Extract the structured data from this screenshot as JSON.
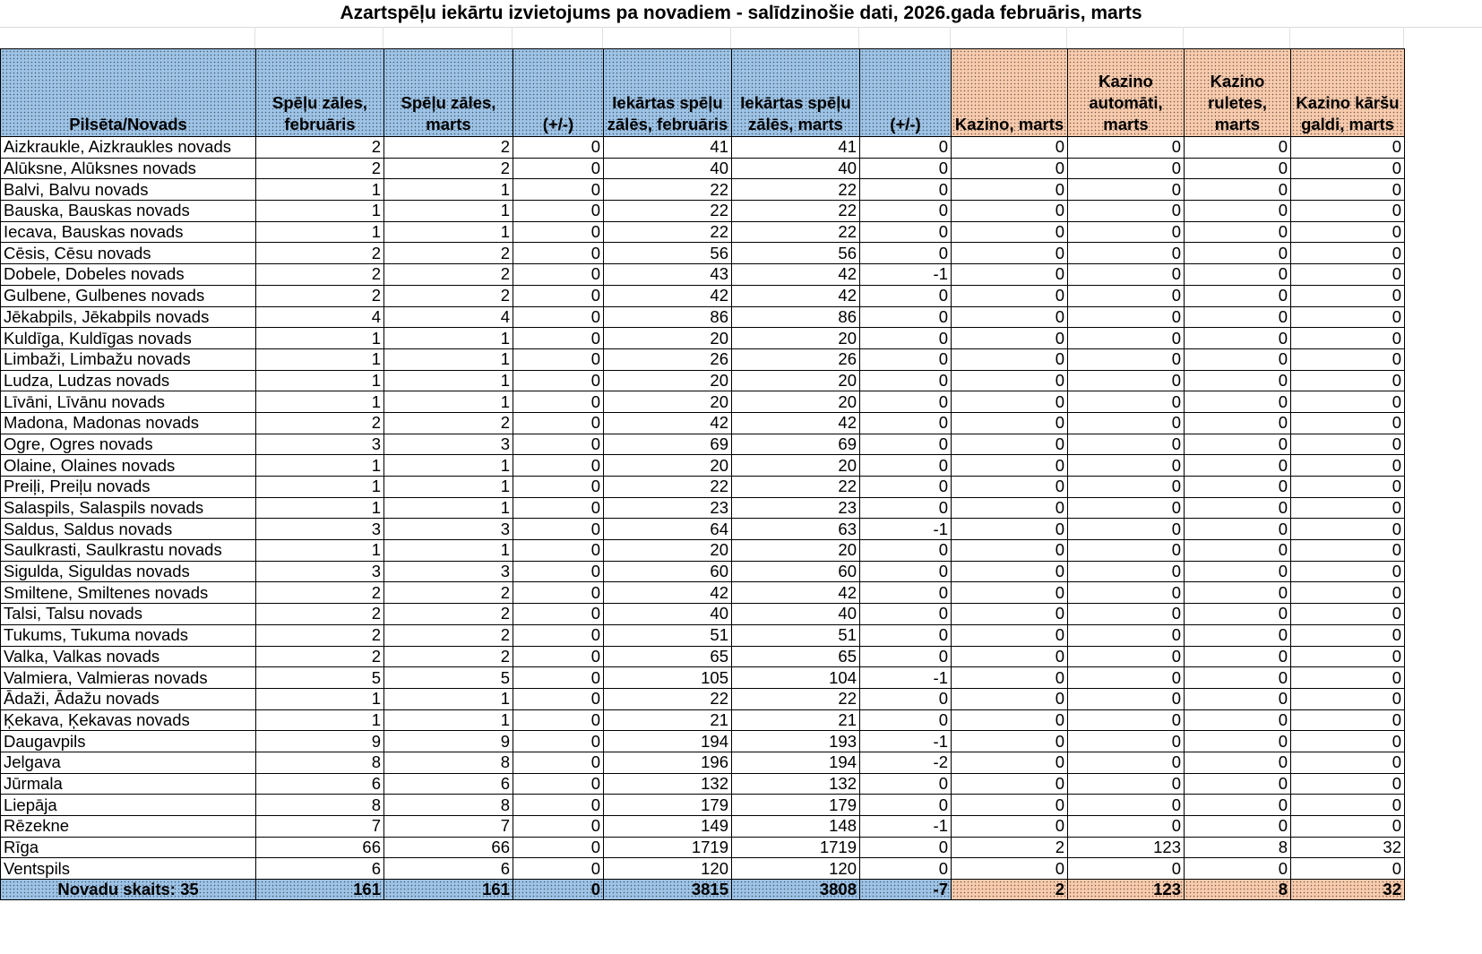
{
  "title": "Azartspēļu iekārtu izvietojums pa novadiem - salīdzinošie dati, 2026.gada februāris, marts",
  "colors": {
    "header_blue": "#9dc3e6",
    "header_orange": "#f8cbad"
  },
  "columns": [
    {
      "label": "Pilsēta/Novads",
      "group": "blue"
    },
    {
      "label": "Spēļu zāles, februāris",
      "group": "blue"
    },
    {
      "label": "Spēļu zāles, marts",
      "group": "blue"
    },
    {
      "label": "(+/-)",
      "group": "blue"
    },
    {
      "label": "Iekārtas spēļu zālēs, februāris",
      "group": "blue"
    },
    {
      "label": "Iekārtas spēļu zālēs, marts",
      "group": "blue"
    },
    {
      "label": "(+/-)",
      "group": "blue"
    },
    {
      "label": "Kazino, marts",
      "group": "orange"
    },
    {
      "label": "Kazino automāti, marts",
      "group": "orange"
    },
    {
      "label": "Kazino ruletes, marts",
      "group": "orange"
    },
    {
      "label": "Kazino kāršu galdi, marts",
      "group": "orange"
    }
  ],
  "rows": [
    [
      "Aizkraukle, Aizkraukles novads",
      "2",
      "2",
      "0",
      "41",
      "41",
      "0",
      "0",
      "0",
      "0",
      "0"
    ],
    [
      "Alūksne, Alūksnes novads",
      "2",
      "2",
      "0",
      "40",
      "40",
      "0",
      "0",
      "0",
      "0",
      "0"
    ],
    [
      "Balvi, Balvu novads",
      "1",
      "1",
      "0",
      "22",
      "22",
      "0",
      "0",
      "0",
      "0",
      "0"
    ],
    [
      "Bauska, Bauskas novads",
      "1",
      "1",
      "0",
      "22",
      "22",
      "0",
      "0",
      "0",
      "0",
      "0"
    ],
    [
      "Iecava, Bauskas novads",
      "1",
      "1",
      "0",
      "22",
      "22",
      "0",
      "0",
      "0",
      "0",
      "0"
    ],
    [
      "Cēsis, Cēsu novads",
      "2",
      "2",
      "0",
      "56",
      "56",
      "0",
      "0",
      "0",
      "0",
      "0"
    ],
    [
      "Dobele, Dobeles novads",
      "2",
      "2",
      "0",
      "43",
      "42",
      "-1",
      "0",
      "0",
      "0",
      "0"
    ],
    [
      "Gulbene, Gulbenes novads",
      "2",
      "2",
      "0",
      "42",
      "42",
      "0",
      "0",
      "0",
      "0",
      "0"
    ],
    [
      "Jēkabpils, Jēkabpils novads",
      "4",
      "4",
      "0",
      "86",
      "86",
      "0",
      "0",
      "0",
      "0",
      "0"
    ],
    [
      "Kuldīga, Kuldīgas novads",
      "1",
      "1",
      "0",
      "20",
      "20",
      "0",
      "0",
      "0",
      "0",
      "0"
    ],
    [
      "Limbaži, Limbažu novads",
      "1",
      "1",
      "0",
      "26",
      "26",
      "0",
      "0",
      "0",
      "0",
      "0"
    ],
    [
      "Ludza, Ludzas novads",
      "1",
      "1",
      "0",
      "20",
      "20",
      "0",
      "0",
      "0",
      "0",
      "0"
    ],
    [
      "Līvāni, Līvānu novads",
      "1",
      "1",
      "0",
      "20",
      "20",
      "0",
      "0",
      "0",
      "0",
      "0"
    ],
    [
      "Madona, Madonas novads",
      "2",
      "2",
      "0",
      "42",
      "42",
      "0",
      "0",
      "0",
      "0",
      "0"
    ],
    [
      "Ogre, Ogres novads",
      "3",
      "3",
      "0",
      "69",
      "69",
      "0",
      "0",
      "0",
      "0",
      "0"
    ],
    [
      "Olaine, Olaines novads",
      "1",
      "1",
      "0",
      "20",
      "20",
      "0",
      "0",
      "0",
      "0",
      "0"
    ],
    [
      "Preiļi, Preiļu novads",
      "1",
      "1",
      "0",
      "22",
      "22",
      "0",
      "0",
      "0",
      "0",
      "0"
    ],
    [
      "Salaspils, Salaspils novads",
      "1",
      "1",
      "0",
      "23",
      "23",
      "0",
      "0",
      "0",
      "0",
      "0"
    ],
    [
      "Saldus, Saldus novads",
      "3",
      "3",
      "0",
      "64",
      "63",
      "-1",
      "0",
      "0",
      "0",
      "0"
    ],
    [
      "Saulkrasti, Saulkrastu novads",
      "1",
      "1",
      "0",
      "20",
      "20",
      "0",
      "0",
      "0",
      "0",
      "0"
    ],
    [
      "Sigulda, Siguldas novads",
      "3",
      "3",
      "0",
      "60",
      "60",
      "0",
      "0",
      "0",
      "0",
      "0"
    ],
    [
      "Smiltene, Smiltenes novads",
      "2",
      "2",
      "0",
      "42",
      "42",
      "0",
      "0",
      "0",
      "0",
      "0"
    ],
    [
      "Talsi, Talsu novads",
      "2",
      "2",
      "0",
      "40",
      "40",
      "0",
      "0",
      "0",
      "0",
      "0"
    ],
    [
      "Tukums, Tukuma novads",
      "2",
      "2",
      "0",
      "51",
      "51",
      "0",
      "0",
      "0",
      "0",
      "0"
    ],
    [
      "Valka, Valkas novads",
      "2",
      "2",
      "0",
      "65",
      "65",
      "0",
      "0",
      "0",
      "0",
      "0"
    ],
    [
      "Valmiera, Valmieras novads",
      "5",
      "5",
      "0",
      "105",
      "104",
      "-1",
      "0",
      "0",
      "0",
      "0"
    ],
    [
      "Ādaži, Ādažu novads",
      "1",
      "1",
      "0",
      "22",
      "22",
      "0",
      "0",
      "0",
      "0",
      "0"
    ],
    [
      "Ķekava, Ķekavas novads",
      "1",
      "1",
      "0",
      "21",
      "21",
      "0",
      "0",
      "0",
      "0",
      "0"
    ],
    [
      "Daugavpils",
      "9",
      "9",
      "0",
      "194",
      "193",
      "-1",
      "0",
      "0",
      "0",
      "0"
    ],
    [
      "Jelgava",
      "8",
      "8",
      "0",
      "196",
      "194",
      "-2",
      "0",
      "0",
      "0",
      "0"
    ],
    [
      "Jūrmala",
      "6",
      "6",
      "0",
      "132",
      "132",
      "0",
      "0",
      "0",
      "0",
      "0"
    ],
    [
      "Liepāja",
      "8",
      "8",
      "0",
      "179",
      "179",
      "0",
      "0",
      "0",
      "0",
      "0"
    ],
    [
      "Rēzekne",
      "7",
      "7",
      "0",
      "149",
      "148",
      "-1",
      "0",
      "0",
      "0",
      "0"
    ],
    [
      "Rīga",
      "66",
      "66",
      "0",
      "1719",
      "1719",
      "0",
      "2",
      "123",
      "8",
      "32"
    ],
    [
      "Ventspils",
      "6",
      "6",
      "0",
      "120",
      "120",
      "0",
      "0",
      "0",
      "0",
      "0"
    ]
  ],
  "total": [
    "Novadu skaits: 35",
    "161",
    "161",
    "0",
    "3815",
    "3808",
    "-7",
    "2",
    "123",
    "8",
    "32"
  ]
}
